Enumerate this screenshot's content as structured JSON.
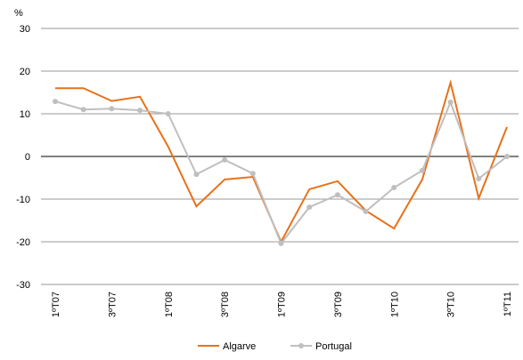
{
  "chart_data": {
    "type": "line",
    "y_axis_label": "%",
    "categories": [
      "1ºT07",
      null,
      "3ºT07",
      null,
      "1ºT08",
      null,
      "3ºT08",
      null,
      "1ºT09",
      null,
      "3ºT09",
      null,
      "1ºT10",
      null,
      "3ºT10",
      null,
      "1ºT11"
    ],
    "series": [
      {
        "name": "Algarve",
        "color": "#e8711a",
        "values": [
          16,
          16,
          13,
          14,
          2.3,
          -11.7,
          -5.4,
          -4.8,
          -20,
          -7.7,
          -5.8,
          -12.7,
          -16.9,
          -5.4,
          17.3,
          -9.8,
          6.9
        ]
      },
      {
        "name": "Portugal",
        "color": "#bfbfbf",
        "values": [
          12.9,
          11,
          11.2,
          10.8,
          10,
          -4.2,
          -0.8,
          -4,
          -20.4,
          -11.9,
          -9,
          -12.9,
          -7.3,
          -3.3,
          12.7,
          -5.2,
          0
        ]
      }
    ],
    "ylim": [
      -30,
      30
    ],
    "yticks": [
      30,
      20,
      10,
      0,
      -10,
      -20,
      -30
    ],
    "grid": true,
    "legend": "bottom"
  }
}
